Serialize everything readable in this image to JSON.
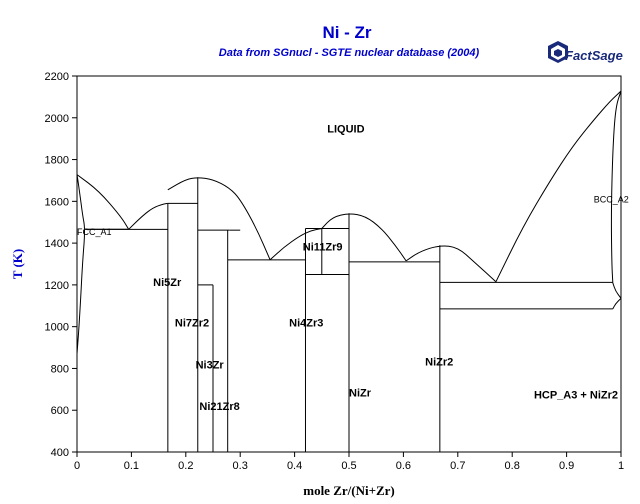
{
  "chart_data": {
    "type": "line",
    "title": "Ni - Zr",
    "subtitle": "Data from SGnucl - SGTE nuclear database (2004)",
    "logo_text": "FactSage",
    "xlabel": "mole Zr/(Ni+Zr)",
    "ylabel": "T (K)",
    "xlim": [
      0,
      1
    ],
    "ylim": [
      400,
      2200
    ],
    "x_ticks": [
      0,
      0.1,
      0.2,
      0.3,
      0.4,
      0.5,
      0.6,
      0.7,
      0.8,
      0.9,
      1
    ],
    "y_ticks": [
      400,
      600,
      800,
      1000,
      1200,
      1400,
      1600,
      1800,
      2000,
      2200
    ],
    "grid": false,
    "colors": {
      "title": "#0000cc",
      "subtitle": "#0000cc",
      "ylabel": "#0000cc",
      "lines": "#000000",
      "logo": "#1a2a7a"
    },
    "labels": [
      {
        "text": "LIQUID",
        "x": 0.46,
        "y": 1930
      },
      {
        "text": "FCC_A1",
        "x": 0.0,
        "y": 1440
      },
      {
        "text": "BCC_A2",
        "x": 0.95,
        "y": 1595
      },
      {
        "text": "Ni5Zr",
        "x": 0.14,
        "y": 1195
      },
      {
        "text": "Ni7Zr2",
        "x": 0.18,
        "y": 1000
      },
      {
        "text": "Ni3Zr",
        "x": 0.218,
        "y": 800
      },
      {
        "text": "Ni21Zr8",
        "x": 0.225,
        "y": 600
      },
      {
        "text": "Ni4Zr3",
        "x": 0.39,
        "y": 1000
      },
      {
        "text": "Ni11Zr9",
        "x": 0.415,
        "y": 1365
      },
      {
        "text": "NiZr",
        "x": 0.5,
        "y": 665
      },
      {
        "text": "NiZr2",
        "x": 0.64,
        "y": 815
      },
      {
        "text": "HCP_A3 + NiZr2",
        "x": 0.84,
        "y": 655
      }
    ],
    "liquidus": [
      {
        "name": "Ni-rich liquidus",
        "points": [
          [
            0,
            1728
          ],
          [
            0.04,
            1650
          ],
          [
            0.08,
            1530
          ],
          [
            0.095,
            1466
          ]
        ]
      },
      {
        "name": "Ni5Zr liquidus",
        "points": [
          [
            0.095,
            1466
          ],
          [
            0.12,
            1530
          ],
          [
            0.14,
            1570
          ],
          [
            0.16,
            1588
          ],
          [
            0.167,
            1590
          ]
        ]
      },
      {
        "name": "Ni7Zr2 dome",
        "points": [
          [
            0.167,
            1655
          ],
          [
            0.2,
            1705
          ],
          [
            0.222,
            1715
          ],
          [
            0.25,
            1705
          ],
          [
            0.28,
            1665
          ],
          [
            0.3,
            1610
          ],
          [
            0.33,
            1470
          ],
          [
            0.355,
            1320
          ]
        ]
      },
      {
        "name": "Ni11Zr9 liquidus",
        "points": [
          [
            0.355,
            1320
          ],
          [
            0.38,
            1380
          ],
          [
            0.41,
            1435
          ],
          [
            0.43,
            1460
          ],
          [
            0.45,
            1470
          ]
        ]
      },
      {
        "name": "NiZr dome",
        "points": [
          [
            0.45,
            1470
          ],
          [
            0.47,
            1525
          ],
          [
            0.5,
            1543
          ],
          [
            0.53,
            1530
          ],
          [
            0.56,
            1470
          ],
          [
            0.585,
            1390
          ],
          [
            0.605,
            1315
          ]
        ]
      },
      {
        "name": "NiZr2 dome",
        "points": [
          [
            0.605,
            1315
          ],
          [
            0.63,
            1360
          ],
          [
            0.667,
            1390
          ],
          [
            0.7,
            1380
          ],
          [
            0.73,
            1310
          ],
          [
            0.77,
            1215
          ]
        ]
      },
      {
        "name": "Zr-rich liquidus",
        "points": [
          [
            0.77,
            1215
          ],
          [
            0.82,
            1480
          ],
          [
            0.87,
            1700
          ],
          [
            0.91,
            1860
          ],
          [
            0.95,
            1990
          ],
          [
            0.98,
            2080
          ],
          [
            1,
            2128
          ]
        ]
      },
      {
        "name": "BCC solidus",
        "points": [
          [
            1,
            2128
          ],
          [
            0.99,
            2050
          ],
          [
            0.985,
            1850
          ],
          [
            0.982,
            1550
          ],
          [
            0.983,
            1300
          ],
          [
            0.985,
            1210
          ]
        ]
      },
      {
        "name": "FCC solidus",
        "points": [
          [
            0,
            1728
          ],
          [
            0.005,
            1640
          ],
          [
            0.01,
            1540
          ],
          [
            0.015,
            1466
          ],
          [
            0.01,
            1300
          ],
          [
            0.005,
            1050
          ],
          [
            0.0,
            870
          ]
        ]
      },
      {
        "name": "FCC to eutectic",
        "points": [
          [
            0.015,
            1466
          ],
          [
            0.095,
            1466
          ]
        ]
      },
      {
        "name": "Zr-rich corner",
        "points": [
          [
            0.985,
            1210
          ],
          [
            0.99,
            1170
          ],
          [
            1,
            1136
          ]
        ]
      },
      {
        "name": "HCP solvus",
        "points": [
          [
            0.985,
            1085
          ],
          [
            0.99,
            1110
          ],
          [
            1,
            1136
          ]
        ]
      }
    ],
    "horizontals": [
      {
        "x": [
          0.015,
          0.167
        ],
        "y": 1466
      },
      {
        "x": [
          0.167,
          0.222
        ],
        "y": 1590
      },
      {
        "x": [
          0.222,
          0.28
        ],
        "y": 1462
      },
      {
        "x": [
          0.28,
          0.3
        ],
        "y": 1462
      },
      {
        "x": [
          0.222,
          0.25
        ],
        "y": 1200
      },
      {
        "x": [
          0.277,
          0.42
        ],
        "y": 1320
      },
      {
        "x": [
          0.42,
          0.5
        ],
        "y": 1470
      },
      {
        "x": [
          0.42,
          0.5
        ],
        "y": 1250
      },
      {
        "x": [
          0.5,
          0.667
        ],
        "y": 1310
      },
      {
        "x": [
          0.667,
          0.985
        ],
        "y": 1212
      },
      {
        "x": [
          0.667,
          0.985
        ],
        "y": 1085
      }
    ],
    "verticals": [
      {
        "x": 0.167,
        "y": [
          400,
          1590
        ]
      },
      {
        "x": 0.222,
        "y": [
          400,
          1715
        ]
      },
      {
        "x": 0.25,
        "y": [
          400,
          1200
        ]
      },
      {
        "x": 0.277,
        "y": [
          400,
          1462
        ]
      },
      {
        "x": 0.42,
        "y": [
          400,
          1470
        ]
      },
      {
        "x": 0.45,
        "y": [
          1250,
          1470
        ]
      },
      {
        "x": 0.5,
        "y": [
          400,
          1543
        ]
      },
      {
        "x": 0.667,
        "y": [
          400,
          1390
        ]
      }
    ]
  }
}
